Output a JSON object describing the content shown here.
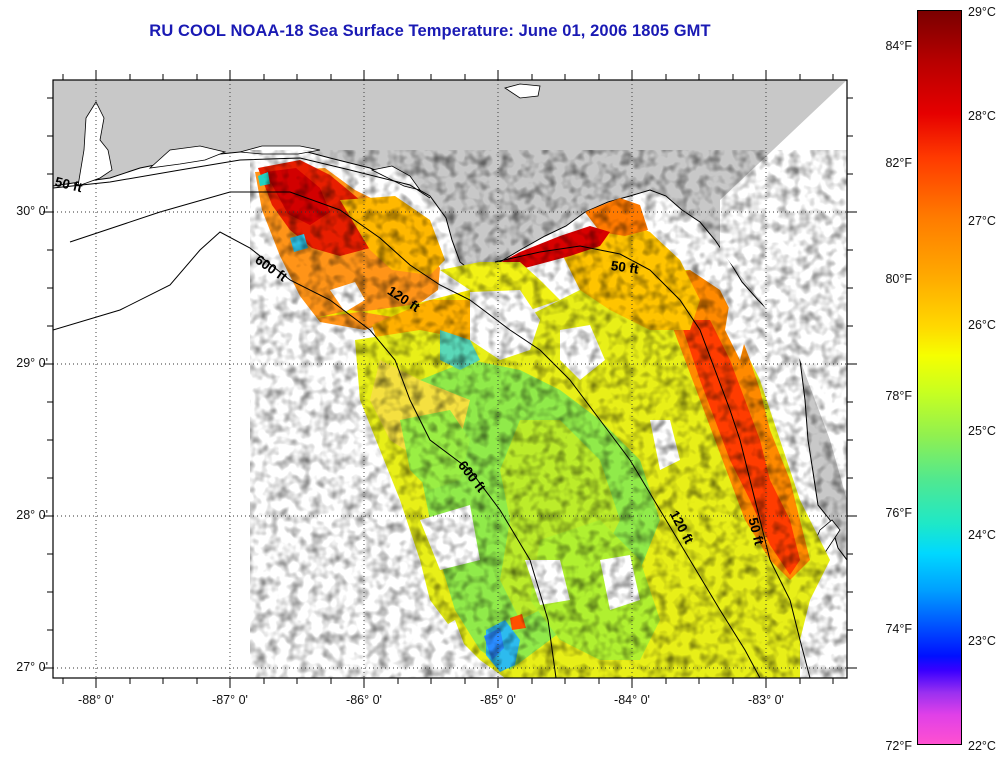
{
  "title": "RU COOL  NOAA-18  Sea Surface Temperature:  June 01, 2006 1805 GMT",
  "map": {
    "latitude_labels": [
      "30° 0'",
      "29° 0'",
      "28° 0'",
      "27° 0'"
    ],
    "longitude_labels": [
      "-88° 0'",
      "-87° 0'",
      "-86° 0'",
      "-85° 0'",
      "-84° 0'",
      "-83° 0'"
    ],
    "isobath_labels": {
      "nw_50": "50 ft",
      "nw_600": "600 ft",
      "mid_120": "120 ft",
      "s_600": "600 ft",
      "ne_50": "50 ft",
      "se_120": "120 ft",
      "se_50": "50 ft"
    },
    "colors": {
      "land": "#c8c8c8",
      "ocean_no_data": "#ffffff",
      "coastline": "#000000",
      "title": "#1a1ab4"
    }
  },
  "colorbar": {
    "fahrenheit_labels": [
      "84°F",
      "82°F",
      "80°F",
      "78°F",
      "76°F",
      "74°F",
      "72°F"
    ],
    "celsius_labels": [
      "29°C",
      "28°C",
      "27°C",
      "26°C",
      "25°C",
      "24°C",
      "23°C",
      "22°C"
    ]
  }
}
